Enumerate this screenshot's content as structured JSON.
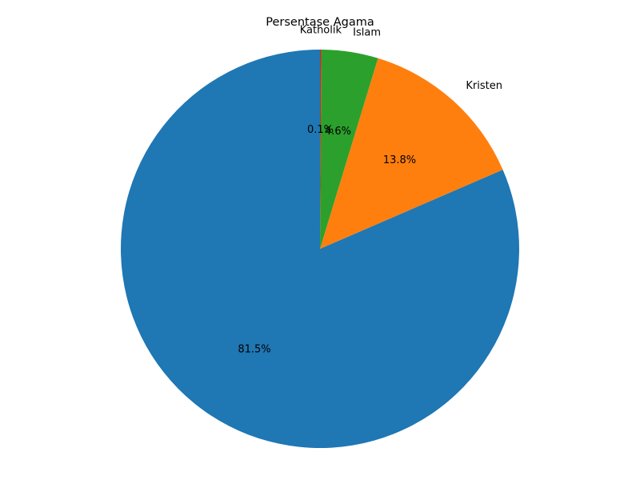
{
  "chart_data": {
    "type": "pie",
    "title": "Persentase Agama",
    "start_angle_deg": 90,
    "direction": "counterclockwise",
    "slices": [
      {
        "label": "",
        "value": 81.5,
        "value_label": "81.5%",
        "color": "#1f77b4"
      },
      {
        "label": "Kristen",
        "value": 13.8,
        "value_label": "13.8%",
        "color": "#ff7f0e"
      },
      {
        "label": "Islam",
        "value": 4.6,
        "value_label": "4.6%",
        "color": "#2ca02c"
      },
      {
        "label": "Katholik",
        "value": 0.1,
        "value_label": "0.1%",
        "color": "#d62728"
      }
    ]
  }
}
